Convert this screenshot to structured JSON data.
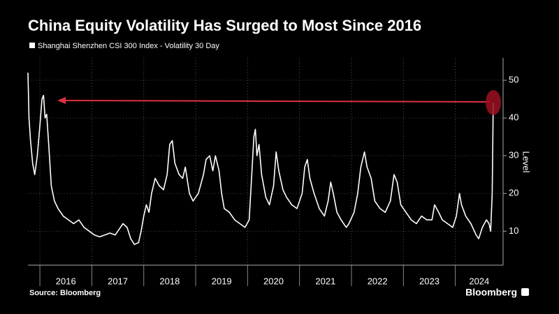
{
  "chart_data": {
    "type": "line",
    "title": "China Equity Volatility Has Surged to Most Since 2016",
    "series": [
      {
        "name": "Shanghai Shenzhen CSI 300 Index - Volatility 30 Day",
        "color": "#ffffff",
        "x": [
          2015.77,
          2015.79,
          2015.82,
          2015.86,
          2015.9,
          2015.95,
          2016.0,
          2016.04,
          2016.07,
          2016.1,
          2016.13,
          2016.17,
          2016.22,
          2016.28,
          2016.35,
          2016.45,
          2016.55,
          2016.65,
          2016.75,
          2016.85,
          2016.95,
          2017.05,
          2017.15,
          2017.25,
          2017.35,
          2017.45,
          2017.55,
          2017.6,
          2017.68,
          2017.75,
          2017.82,
          2017.9,
          2017.95,
          2018.0,
          2018.05,
          2018.1,
          2018.15,
          2018.22,
          2018.3,
          2018.38,
          2018.45,
          2018.5,
          2018.55,
          2018.6,
          2018.68,
          2018.75,
          2018.8,
          2018.88,
          2018.95,
          2019.05,
          2019.15,
          2019.2,
          2019.27,
          2019.33,
          2019.38,
          2019.45,
          2019.5,
          2019.55,
          2019.65,
          2019.75,
          2019.85,
          2019.95,
          2020.03,
          2020.08,
          2020.12,
          2020.15,
          2020.18,
          2020.22,
          2020.27,
          2020.35,
          2020.42,
          2020.5,
          2020.55,
          2020.6,
          2020.68,
          2020.75,
          2020.85,
          2020.95,
          2021.05,
          2021.1,
          2021.15,
          2021.2,
          2021.28,
          2021.38,
          2021.48,
          2021.55,
          2021.6,
          2021.65,
          2021.72,
          2021.8,
          2021.9,
          2021.95,
          2022.05,
          2022.12,
          2022.18,
          2022.25,
          2022.3,
          2022.38,
          2022.45,
          2022.55,
          2022.65,
          2022.75,
          2022.82,
          2022.88,
          2022.95,
          2023.05,
          2023.15,
          2023.25,
          2023.35,
          2023.45,
          2023.55,
          2023.6,
          2023.68,
          2023.75,
          2023.85,
          2023.95,
          2024.02,
          2024.08,
          2024.12,
          2024.2,
          2024.3,
          2024.4,
          2024.45,
          2024.52,
          2024.6,
          2024.65,
          2024.68,
          2024.71,
          2024.73
        ],
        "values": [
          52,
          40,
          34,
          28,
          25,
          30,
          38,
          45,
          46,
          40,
          41,
          33,
          22,
          18,
          16,
          14,
          13,
          12,
          13,
          11,
          10,
          9,
          8.5,
          9,
          9.5,
          9,
          11,
          12,
          11,
          8,
          6.5,
          7,
          10,
          14,
          17,
          15,
          20,
          24,
          22,
          21,
          25,
          33,
          34,
          28,
          25,
          24,
          27,
          20,
          18,
          20,
          25,
          29,
          30,
          26,
          30,
          26,
          20,
          16,
          15,
          13,
          12,
          11,
          13,
          25,
          35,
          37,
          30,
          33,
          25,
          19,
          17,
          22,
          31,
          26,
          21,
          19,
          17,
          16,
          20,
          27,
          29,
          24,
          20,
          16,
          14,
          18,
          23,
          20,
          15,
          13,
          11,
          12,
          15,
          20,
          27,
          31,
          27,
          24,
          18,
          16,
          15,
          18,
          25,
          23,
          17,
          15,
          13,
          12,
          14,
          13,
          13,
          17,
          15,
          13,
          12,
          11,
          14,
          20,
          17,
          14,
          12,
          9,
          8,
          11,
          13,
          12,
          10,
          20,
          44
        ]
      }
    ],
    "xlim": [
      2015.77,
      2024.92
    ],
    "xticks": [
      {
        "value": 2016,
        "label": "2016"
      },
      {
        "value": 2017,
        "label": "2017"
      },
      {
        "value": 2018,
        "label": "2018"
      },
      {
        "value": 2019,
        "label": "2019"
      },
      {
        "value": 2020,
        "label": "2020"
      },
      {
        "value": 2021,
        "label": "2021"
      },
      {
        "value": 2022,
        "label": "2022"
      },
      {
        "value": 2023,
        "label": "2023"
      },
      {
        "value": 2024,
        "label": "2024"
      }
    ],
    "ylim": [
      1,
      55
    ],
    "yticks": [
      10,
      20,
      30,
      40,
      50
    ],
    "ylabel": "Level",
    "source": "Source: Bloomberg",
    "brand": "Bloomberg",
    "grid": true
  }
}
